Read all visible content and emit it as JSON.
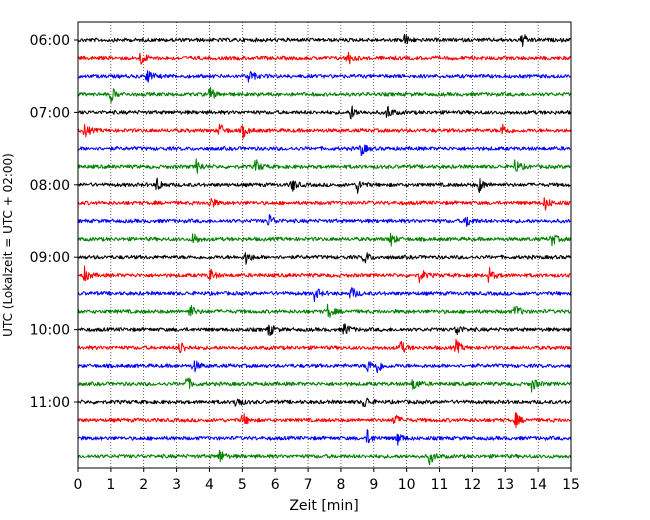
{
  "chart_data": {
    "type": "line",
    "title": "",
    "xlabel": "Zeit  [min]",
    "ylabel": "UTC (Lokalzeit = UTC + 02:00)",
    "xlim": [
      0,
      15
    ],
    "x_ticks": [
      0,
      1,
      2,
      3,
      4,
      5,
      6,
      7,
      8,
      9,
      10,
      11,
      12,
      13,
      14,
      15
    ],
    "y_tick_labels": [
      "06:00",
      "07:00",
      "08:00",
      "09:00",
      "10:00",
      "11:00"
    ],
    "grid": "vertical dotted",
    "trace_start_time": "06:00",
    "trace_interval_min": 15,
    "color_cycle": [
      "#000000",
      "#ff0000",
      "#0000ff",
      "#008000"
    ],
    "events": [
      [
        9.9,
        13.5
      ],
      [
        1.9,
        8.2
      ],
      [
        2.1,
        5.2
      ],
      [
        4.0,
        1.0
      ],
      [
        8.3,
        9.4
      ],
      [
        0.2,
        4.3,
        5.0,
        12.9
      ],
      [
        8.6
      ],
      [
        3.6,
        5.4,
        13.3
      ],
      [
        2.4,
        6.5,
        8.5,
        12.2
      ],
      [
        4.0,
        14.2
      ],
      [
        5.8,
        11.8
      ],
      [
        3.5,
        9.5,
        14.4
      ],
      [
        5.1,
        8.7
      ],
      [
        0.2,
        4.0,
        10.4,
        12.5
      ],
      [
        7.2,
        8.3
      ],
      [
        3.4,
        7.6,
        13.3
      ],
      [
        5.8,
        8.1,
        11.5
      ],
      [
        3.1,
        9.8,
        11.5
      ],
      [
        3.5,
        8.8,
        9.1
      ],
      [
        3.3,
        10.2,
        13.8
      ],
      [
        4.8,
        8.7
      ],
      [
        5.0,
        9.6,
        13.3
      ],
      [
        8.8,
        9.7
      ],
      [
        4.3,
        10.7
      ]
    ]
  }
}
